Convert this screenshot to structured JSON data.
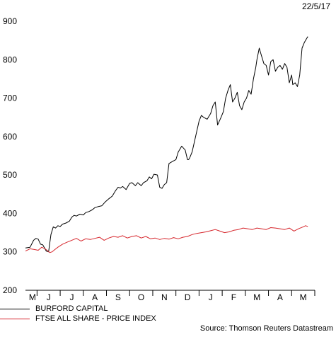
{
  "chart_data": {
    "type": "line",
    "date_label": "22/5/17",
    "source": "Source: Thomson Reuters Datastream",
    "ylim": [
      200,
      900
    ],
    "yticks": [
      200,
      300,
      400,
      500,
      600,
      700,
      800,
      900
    ],
    "xlim": [
      0,
      12.5
    ],
    "xticks": [
      {
        "label": "M",
        "pos": 0.3
      },
      {
        "label": "J",
        "pos": 1.0
      },
      {
        "label": "J",
        "pos": 2.0
      },
      {
        "label": "A",
        "pos": 3.0
      },
      {
        "label": "S",
        "pos": 4.0
      },
      {
        "label": "O",
        "pos": 5.0
      },
      {
        "label": "N",
        "pos": 6.0
      },
      {
        "label": "D",
        "pos": 7.0
      },
      {
        "label": "J",
        "pos": 8.0
      },
      {
        "label": "F",
        "pos": 9.0
      },
      {
        "label": "M",
        "pos": 10.0
      },
      {
        "label": "A",
        "pos": 11.0
      },
      {
        "label": "M",
        "pos": 12.0
      }
    ],
    "series": [
      {
        "name": "BURFORD CAPITAL",
        "color": "#000000",
        "x": [
          0.0,
          0.2,
          0.35,
          0.45,
          0.55,
          0.65,
          0.75,
          0.9,
          1.0,
          1.1,
          1.2,
          1.3,
          1.4,
          1.5,
          1.6,
          1.75,
          1.9,
          2.0,
          2.1,
          2.2,
          2.35,
          2.5,
          2.6,
          2.75,
          2.9,
          3.0,
          3.15,
          3.3,
          3.45,
          3.6,
          3.75,
          3.9,
          4.0,
          4.1,
          4.2,
          4.35,
          4.5,
          4.6,
          4.75,
          4.85,
          5.0,
          5.1,
          5.25,
          5.35,
          5.45,
          5.55,
          5.7,
          5.8,
          5.9,
          6.0,
          6.1,
          6.2,
          6.35,
          6.5,
          6.6,
          6.75,
          6.9,
          7.0,
          7.05,
          7.1,
          7.2,
          7.35,
          7.5,
          7.6,
          7.7,
          7.85,
          8.0,
          8.1,
          8.2,
          8.3,
          8.45,
          8.55,
          8.65,
          8.75,
          8.85,
          8.95,
          9.05,
          9.15,
          9.25,
          9.35,
          9.45,
          9.55,
          9.65,
          9.75,
          9.85,
          9.95,
          10.0,
          10.1,
          10.2,
          10.3,
          10.4,
          10.5,
          10.6,
          10.7,
          10.8,
          10.9,
          11.0,
          11.1,
          11.2,
          11.3,
          11.4,
          11.5,
          11.55,
          11.65,
          11.75,
          11.85,
          11.95,
          12.05,
          12.1,
          12.15,
          12.2
        ],
        "values": [
          310,
          312,
          330,
          335,
          333,
          320,
          318,
          302,
          300,
          345,
          365,
          362,
          368,
          366,
          372,
          375,
          380,
          390,
          395,
          393,
          398,
          396,
          402,
          405,
          410,
          415,
          418,
          420,
          430,
          438,
          445,
          460,
          468,
          466,
          470,
          462,
          478,
          480,
          472,
          480,
          472,
          480,
          485,
          495,
          490,
          502,
          500,
          468,
          465,
          475,
          480,
          530,
          535,
          540,
          560,
          575,
          565,
          540,
          540,
          545,
          560,
          600,
          640,
          655,
          650,
          645,
          660,
          680,
          690,
          630,
          650,
          665,
          700,
          720,
          735,
          690,
          700,
          715,
          680,
          670,
          690,
          700,
          720,
          710,
          750,
          780,
          800,
          830,
          810,
          790,
          785,
          760,
          795,
          800,
          770,
          780,
          785,
          775,
          790,
          780,
          740,
          760,
          735,
          740,
          730,
          760,
          830,
          845,
          850,
          855,
          860
        ]
      },
      {
        "name": "FTSE ALL SHARE - PRICE INDEX",
        "color": "#d6252b",
        "x": [
          0.0,
          0.2,
          0.4,
          0.55,
          0.7,
          0.85,
          0.95,
          1.05,
          1.15,
          1.25,
          1.4,
          1.6,
          1.8,
          2.0,
          2.2,
          2.4,
          2.6,
          2.8,
          3.0,
          3.2,
          3.4,
          3.6,
          3.8,
          4.0,
          4.2,
          4.4,
          4.6,
          4.8,
          5.0,
          5.2,
          5.4,
          5.6,
          5.8,
          6.0,
          6.2,
          6.4,
          6.6,
          6.8,
          7.0,
          7.2,
          7.4,
          7.6,
          7.8,
          8.0,
          8.2,
          8.4,
          8.6,
          8.8,
          9.0,
          9.2,
          9.4,
          9.6,
          9.8,
          10.0,
          10.2,
          10.4,
          10.6,
          10.8,
          11.0,
          11.2,
          11.4,
          11.6,
          11.8,
          12.0,
          12.1,
          12.2
        ],
        "values": [
          302,
          308,
          306,
          304,
          312,
          308,
          303,
          298,
          300,
          305,
          312,
          320,
          325,
          330,
          335,
          328,
          334,
          332,
          335,
          338,
          330,
          336,
          340,
          338,
          342,
          336,
          340,
          342,
          336,
          340,
          334,
          336,
          332,
          335,
          333,
          337,
          334,
          338,
          340,
          345,
          348,
          350,
          352,
          355,
          358,
          354,
          350,
          352,
          356,
          358,
          362,
          360,
          358,
          362,
          360,
          358,
          363,
          362,
          360,
          358,
          362,
          354,
          360,
          365,
          368,
          366
        ]
      }
    ]
  }
}
